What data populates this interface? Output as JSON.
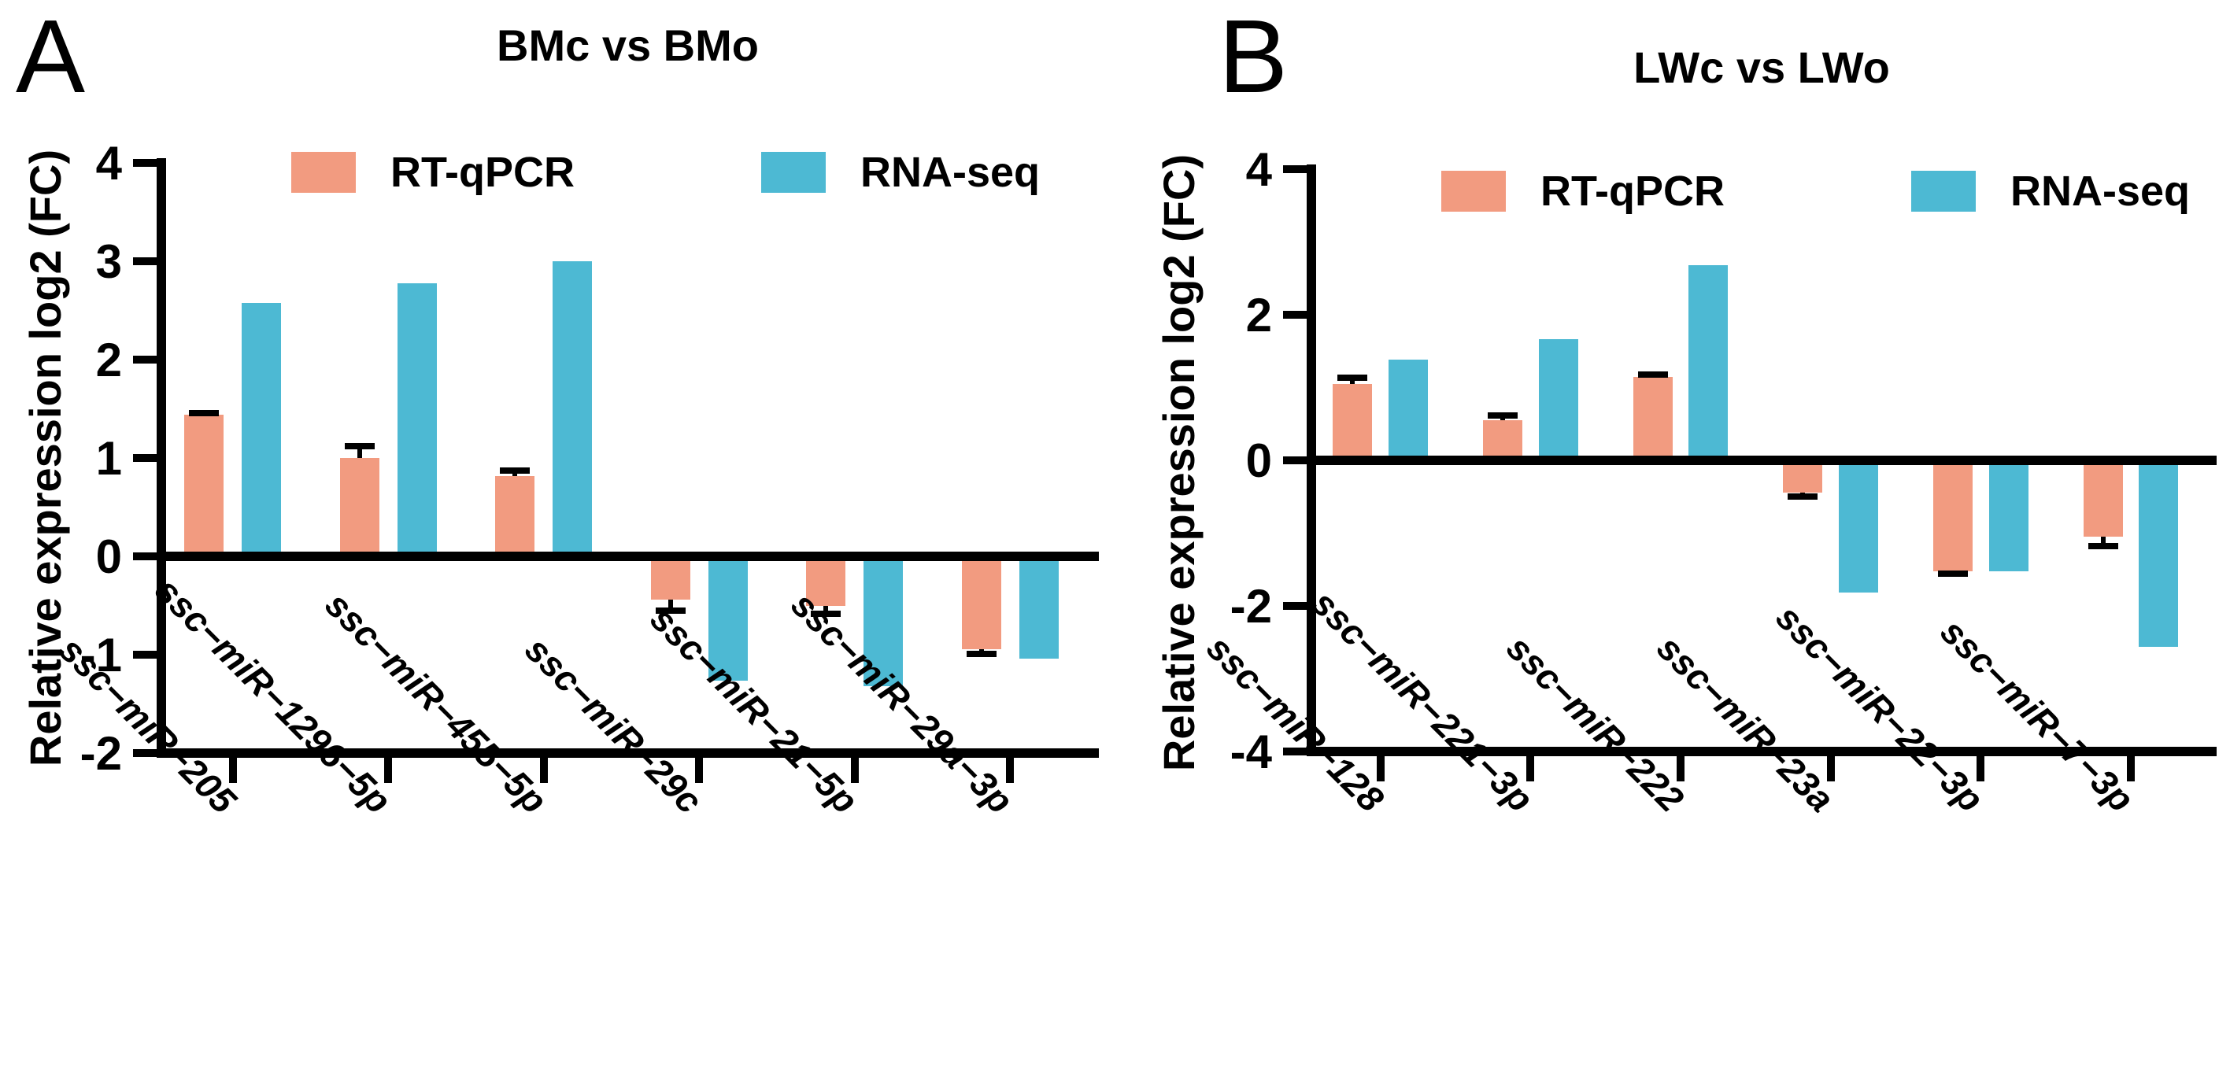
{
  "colors": {
    "rt_qpcr": "#F29B80",
    "rna_seq": "#4DB9D3",
    "axis": "#000000",
    "background": "#FFFFFF"
  },
  "chart_data": [
    {
      "type": "bar",
      "panel_letter": "A",
      "title": "BMc vs BMo",
      "ylabel": "Relative expression log2 (FC)",
      "xlabel": "",
      "ylim": [
        -2,
        4
      ],
      "yticks": [
        4,
        3,
        2,
        1,
        0,
        -1,
        -2
      ],
      "grid": false,
      "legend_position": "top-inside",
      "categories": [
        "ssc−miR−205",
        "ssc−miR−1296−5p",
        "ssc−miR−455−5p",
        "ssc−miR−29c",
        "ssc−miR−21−5p",
        "ssc−miR−29a−3p"
      ],
      "series": [
        {
          "name": "RT-qPCR",
          "color": "#F29B80",
          "values": [
            1.44,
            1.0,
            0.82,
            -0.44,
            -0.5,
            -0.94
          ],
          "errors": [
            0.02,
            0.12,
            0.05,
            0.11,
            0.08,
            0.05
          ]
        },
        {
          "name": "RNA-seq",
          "color": "#4DB9D3",
          "values": [
            2.58,
            2.78,
            3.0,
            -1.26,
            -1.32,
            -1.04
          ],
          "errors": [
            0,
            0,
            0,
            0,
            0,
            0
          ]
        }
      ]
    },
    {
      "type": "bar",
      "panel_letter": "B",
      "title": "LWc vs LWo",
      "ylabel": "Relative expression log2 (FC)",
      "xlabel": "",
      "ylim": [
        -4,
        4
      ],
      "yticks": [
        4,
        2,
        0,
        -2,
        -4
      ],
      "grid": false,
      "legend_position": "top-inside",
      "categories": [
        "ssc−miR−128",
        "ssc−miR−221−3p",
        "ssc−miR−222",
        "ssc−miR−23a",
        "ssc−miR−22−3p",
        "ssc−miR−7−3p"
      ],
      "series": [
        {
          "name": "RT-qPCR",
          "color": "#F29B80",
          "values": [
            1.05,
            0.55,
            1.15,
            -0.44,
            -1.52,
            -1.05
          ],
          "errors": [
            0.08,
            0.07,
            0.03,
            0.06,
            0.04,
            0.13
          ]
        },
        {
          "name": "RNA-seq",
          "color": "#4DB9D3",
          "values": [
            1.38,
            1.66,
            2.68,
            -1.82,
            -1.52,
            -2.56
          ],
          "errors": [
            0,
            0,
            0,
            0,
            0,
            0
          ]
        }
      ]
    }
  ]
}
